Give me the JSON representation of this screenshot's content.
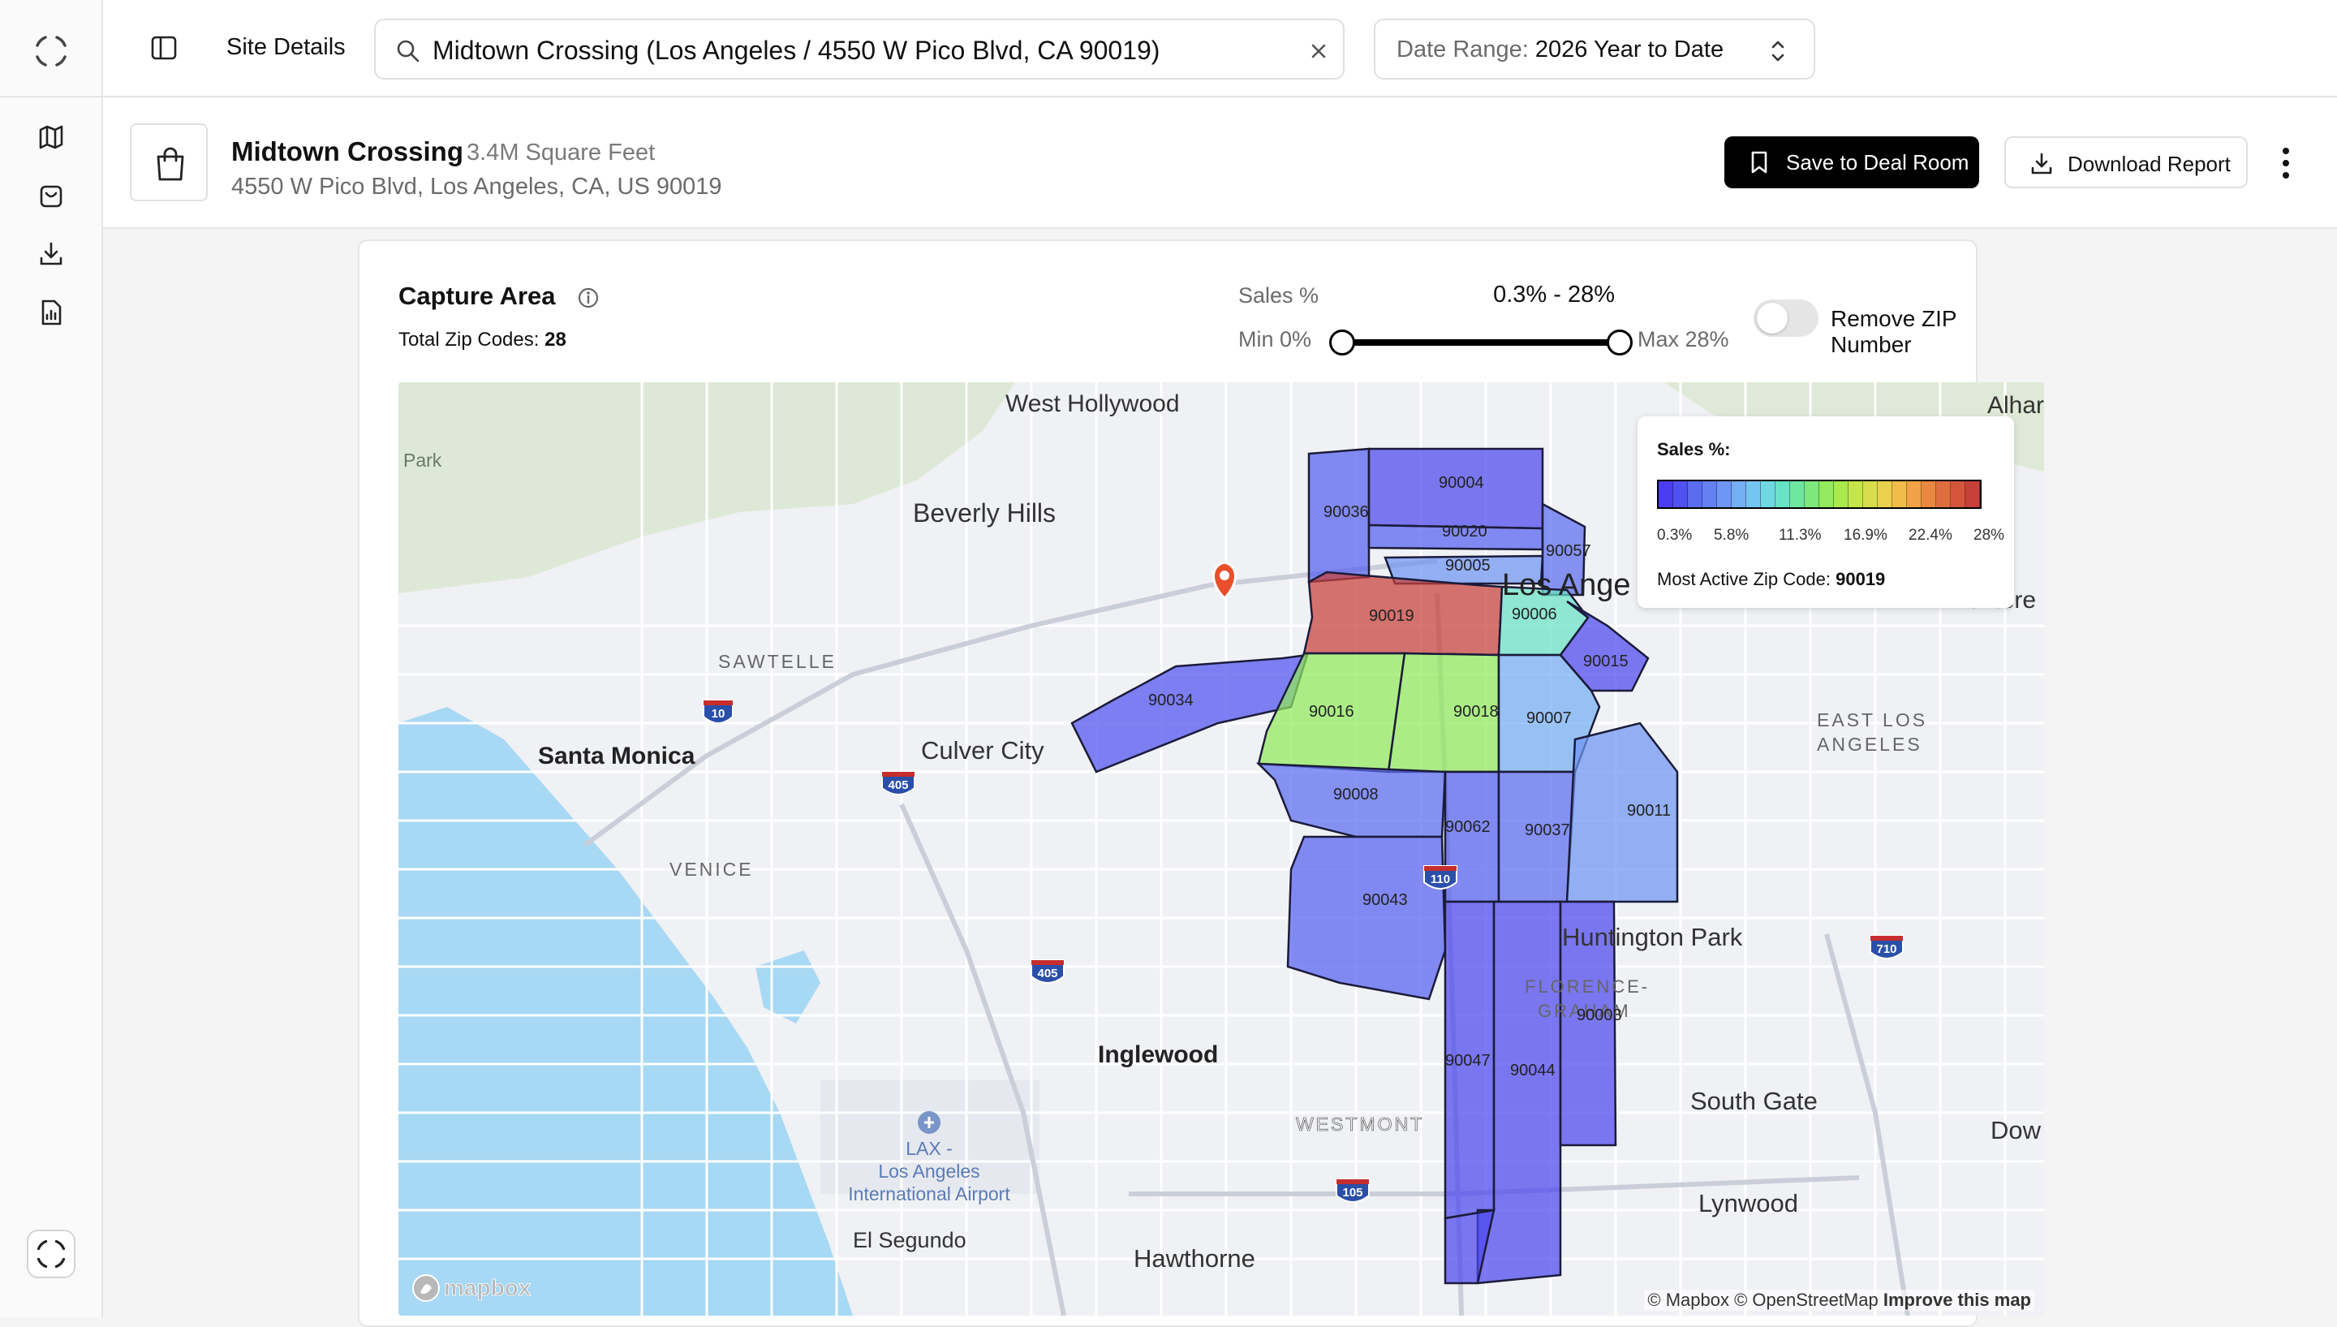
{
  "header": {
    "page_title": "Site Details",
    "search_value": "Midtown Crossing (Los Angeles / 4550 W Pico Blvd, CA 90019)",
    "date_range_label": "Date Range:",
    "date_range_value": "2026 Year to Date"
  },
  "site": {
    "name": "Midtown Crossing",
    "size": "3.4M Square Feet",
    "address": "4550 W Pico Blvd, Los Angeles, CA, US 90019",
    "save_label": "Save to Deal Room",
    "download_label": "Download Report"
  },
  "capture": {
    "title": "Capture Area",
    "total_label": "Total Zip Codes:",
    "total_value": "28",
    "sales_label": "Sales %",
    "sales_range": "0.3% - 28%",
    "min_label": "Min 0%",
    "max_label": "Max 28%",
    "slider_min_fraction": 0,
    "slider_max_fraction": 1,
    "toggle_label": "Remove ZIP Number",
    "toggle_on": false
  },
  "legend": {
    "title": "Sales %:",
    "ticks": [
      "0.3%",
      "5.8%",
      "11.3%",
      "16.9%",
      "22.4%",
      "28%"
    ],
    "colors": [
      "#4b3df2",
      "#4f52f0",
      "#5a6cf0",
      "#6580f2",
      "#6f96f3",
      "#74aef3",
      "#74c6f0",
      "#6fd9e3",
      "#69e3c6",
      "#6fe6a0",
      "#7ee87c",
      "#92ea5c",
      "#aaea4c",
      "#c4e64a",
      "#d9dd4c",
      "#ead04c",
      "#f1bc4a",
      "#f1a246",
      "#ea8842",
      "#df6e3e",
      "#d4553c",
      "#c7403a"
    ],
    "active_label": "Most Active Zip Code:",
    "active_value": "90019"
  },
  "map": {
    "places": {
      "west_hollywood": "West Hollywood",
      "beverly_hills": "Beverly Hills",
      "sawtelle": "SAWTELLE",
      "santa_monica": "Santa Monica",
      "culver_city": "Culver City",
      "venice": "VENICE",
      "los_angeles": "Los Ange",
      "alhambra": "Alhar",
      "monterey": "Montere",
      "east_la_1": "EAST LOS",
      "east_la_2": "ANGELES",
      "huntington_park": "Huntington Park",
      "florence_1": "FLORENCE-",
      "florence_2": "GRAHAM",
      "inglewood": "Inglewood",
      "south_gate": "South Gate",
      "downey": "Dow",
      "lynwood": "Lynwood",
      "westmont": "WESTMONT",
      "lax_1": "LAX -",
      "lax_2": "Los Angeles",
      "lax_3": "International Airport",
      "el_segundo": "El Segundo",
      "hawthorne": "Hawthorne",
      "park": "Park"
    },
    "shields": {
      "i10": "10",
      "i405a": "405",
      "i405b": "405",
      "i110": "110",
      "i710": "710",
      "i105": "105"
    },
    "zips": {
      "z90004": "90004",
      "z90036": "90036",
      "z90020": "90020",
      "z90005": "90005",
      "z90057": "90057",
      "z90019": "90019",
      "z90006": "90006",
      "z90015": "90015",
      "z90034": "90034",
      "z90016": "90016",
      "z90018": "90018",
      "z90007": "90007",
      "z90008": "90008",
      "z90062": "90062",
      "z90037": "90037",
      "z90011": "90011",
      "z90043": "90043",
      "z90003": "90003",
      "z90047": "90047",
      "z90044": "90044"
    },
    "attribution_1": "© Mapbox © OpenStreetMap",
    "attribution_2": "Improve this map",
    "brand": "mapbox"
  }
}
